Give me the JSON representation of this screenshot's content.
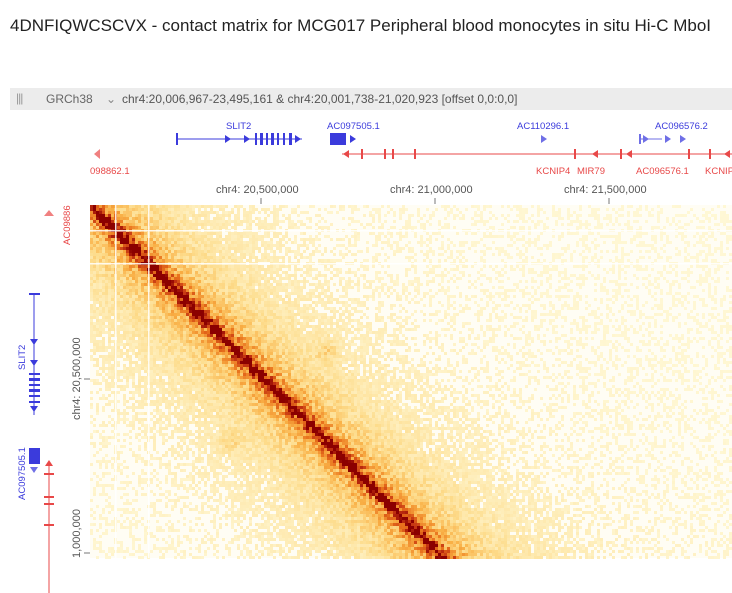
{
  "page": {
    "title": "4DNFIQWCSCVX - contact matrix for MCG017 Peripheral blood monocytes in situ Hi-C MboI"
  },
  "toolbar": {
    "grip_icon": "|||",
    "assembly": "GRCh38",
    "chevron_icon": "⌄",
    "location": "chr4:20,006,967-23,495,161 & chr4:20,001,738-21,020,923 [offset 0,0:0,0]"
  },
  "top_genes": {
    "slit2": "SLIT2",
    "ac097505": "AC097505.1",
    "ac110296": "AC110296.1",
    "ac096576_2": "AC096576.2",
    "ac098862": "098862.1",
    "kcnip4": "KCNIP4",
    "mir79": "MIR79",
    "ac096576_1": "AC096576.1",
    "kcnip_end": "KCNIP"
  },
  "top_axis": {
    "tick1": "chr4: 20,500,000",
    "tick2": "chr4: 21,000,000",
    "tick3": "chr4: 21,500,000"
  },
  "left_genes": {
    "ac09886": "AC09886",
    "slit2": "SLIT2",
    "ac097505": "AC097505.1"
  },
  "left_axis": {
    "tick1": "chr4: 20,500,000",
    "tick2": "1,000,000"
  },
  "colors": {
    "plus_strand": "#3b3bdc",
    "minus_strand": "#e84848",
    "heatmap_low": "#fff3c4",
    "heatmap_high": "#8b0000"
  }
}
